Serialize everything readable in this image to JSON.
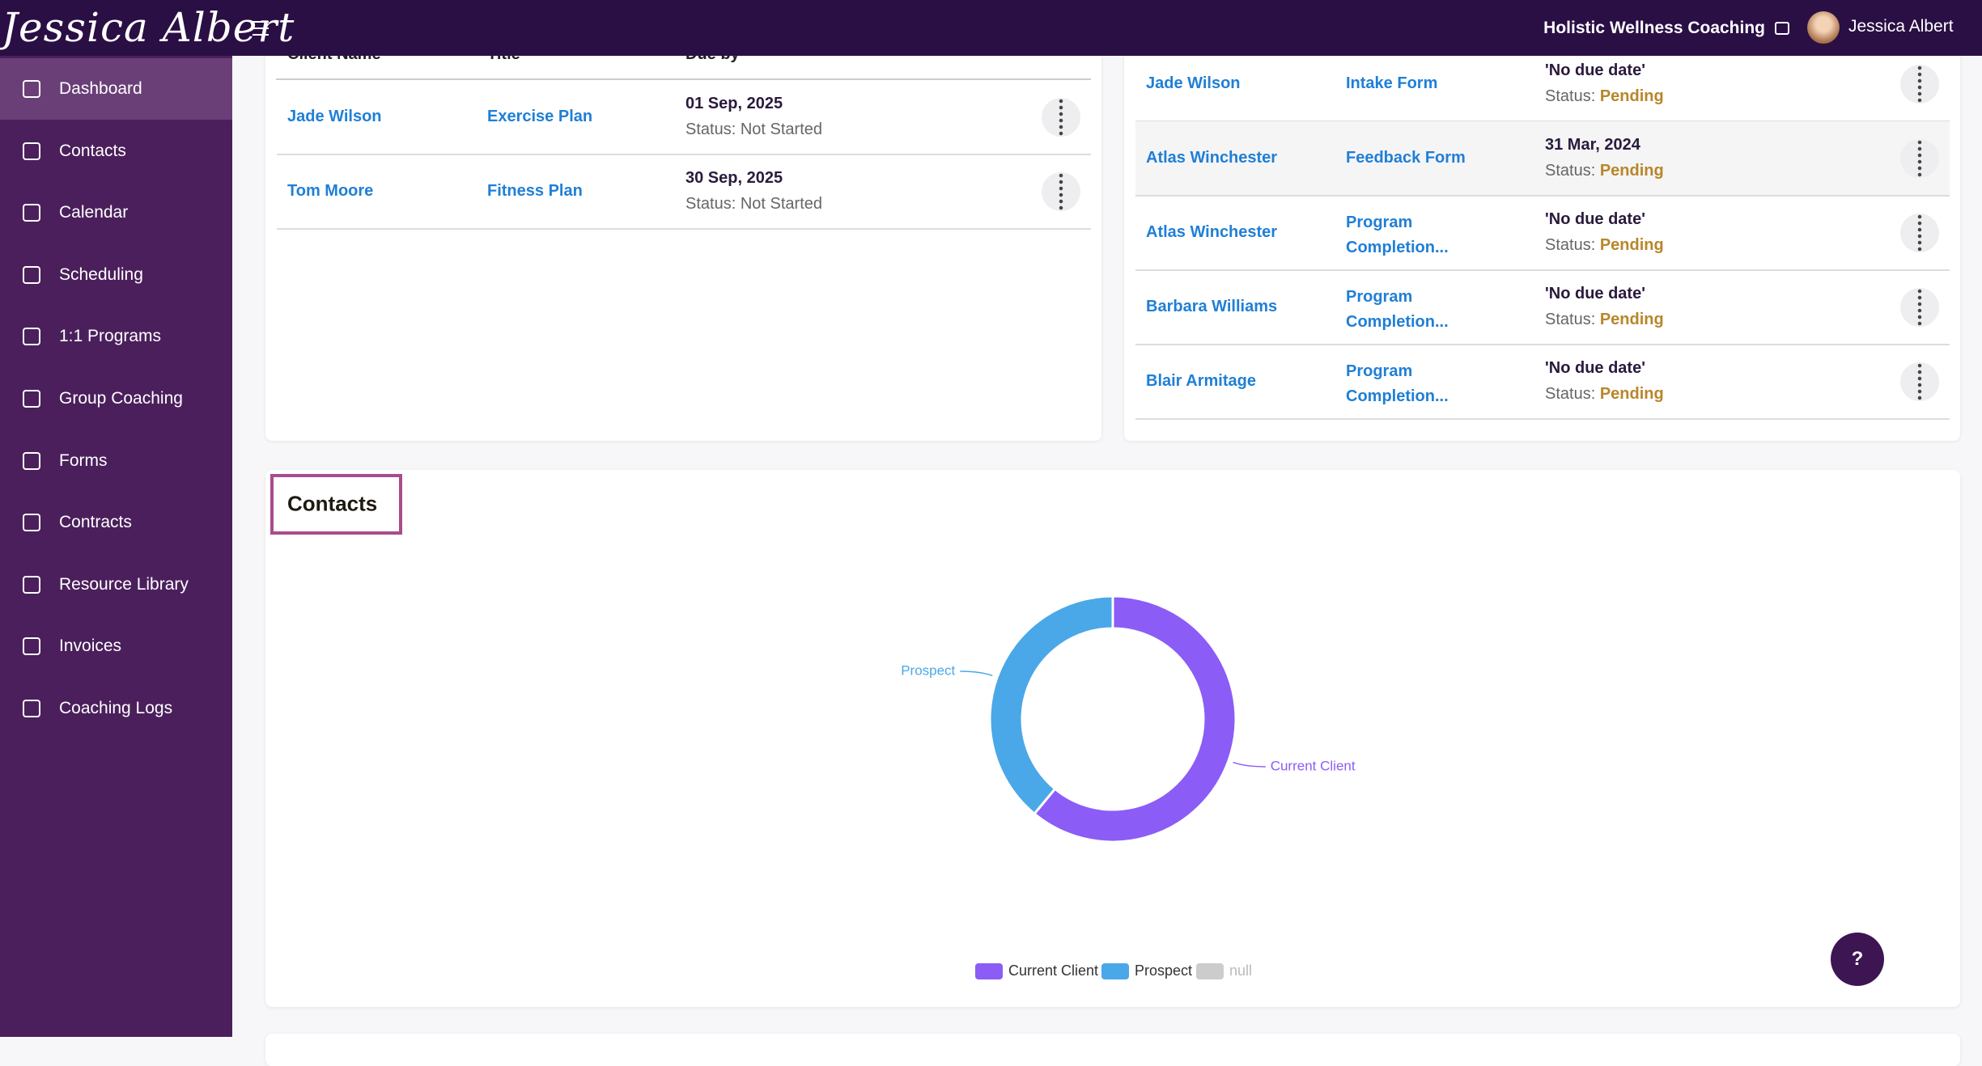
{
  "header": {
    "logo": "Jessica Albert",
    "business": "Holistic Wellness Coaching",
    "user": "Jessica Albert"
  },
  "nav": [
    "Dashboard",
    "Contacts",
    "Calendar",
    "Scheduling",
    "1:1 Programs",
    "Group Coaching",
    "Forms",
    "Contracts",
    "Resource Library",
    "Invoices",
    "Coaching Logs"
  ],
  "left_table": {
    "columns": [
      "Client Name",
      "Title",
      "Due by"
    ],
    "status_label": "Status:",
    "rows": [
      {
        "client": "Jade Wilson",
        "title": "Exercise Plan",
        "due": "01 Sep, 2025",
        "status": "Not Started"
      },
      {
        "client": "Tom Moore",
        "title": "Fitness Plan",
        "due": "30 Sep, 2025",
        "status": "Not Started"
      }
    ]
  },
  "right_table": {
    "status_label": "Status:",
    "rows": [
      {
        "client": "Jade Wilson",
        "title": "Intake Form",
        "due": "'No due date'",
        "status": "Pending"
      },
      {
        "client": "Atlas Winchester",
        "title": "Feedback Form",
        "due": "31 Mar, 2024",
        "status": "Pending"
      },
      {
        "client": "Atlas Winchester",
        "title": "Program Completion...",
        "due": "'No due date'",
        "status": "Pending"
      },
      {
        "client": "Barbara Williams",
        "title": "Program Completion...",
        "due": "'No due date'",
        "status": "Pending"
      },
      {
        "client": "Blair Armitage",
        "title": "Program Completion...",
        "due": "'No due date'",
        "status": "Pending"
      }
    ]
  },
  "contacts_card": {
    "title": "Contacts",
    "chart_data": {
      "type": "donut",
      "categories": [
        "Current Client",
        "Prospect",
        "null"
      ],
      "values": [
        61,
        39,
        0
      ],
      "colors": [
        "#8b5cf6",
        "#4aa8e8",
        "#cccccc"
      ]
    }
  },
  "help": "?"
}
